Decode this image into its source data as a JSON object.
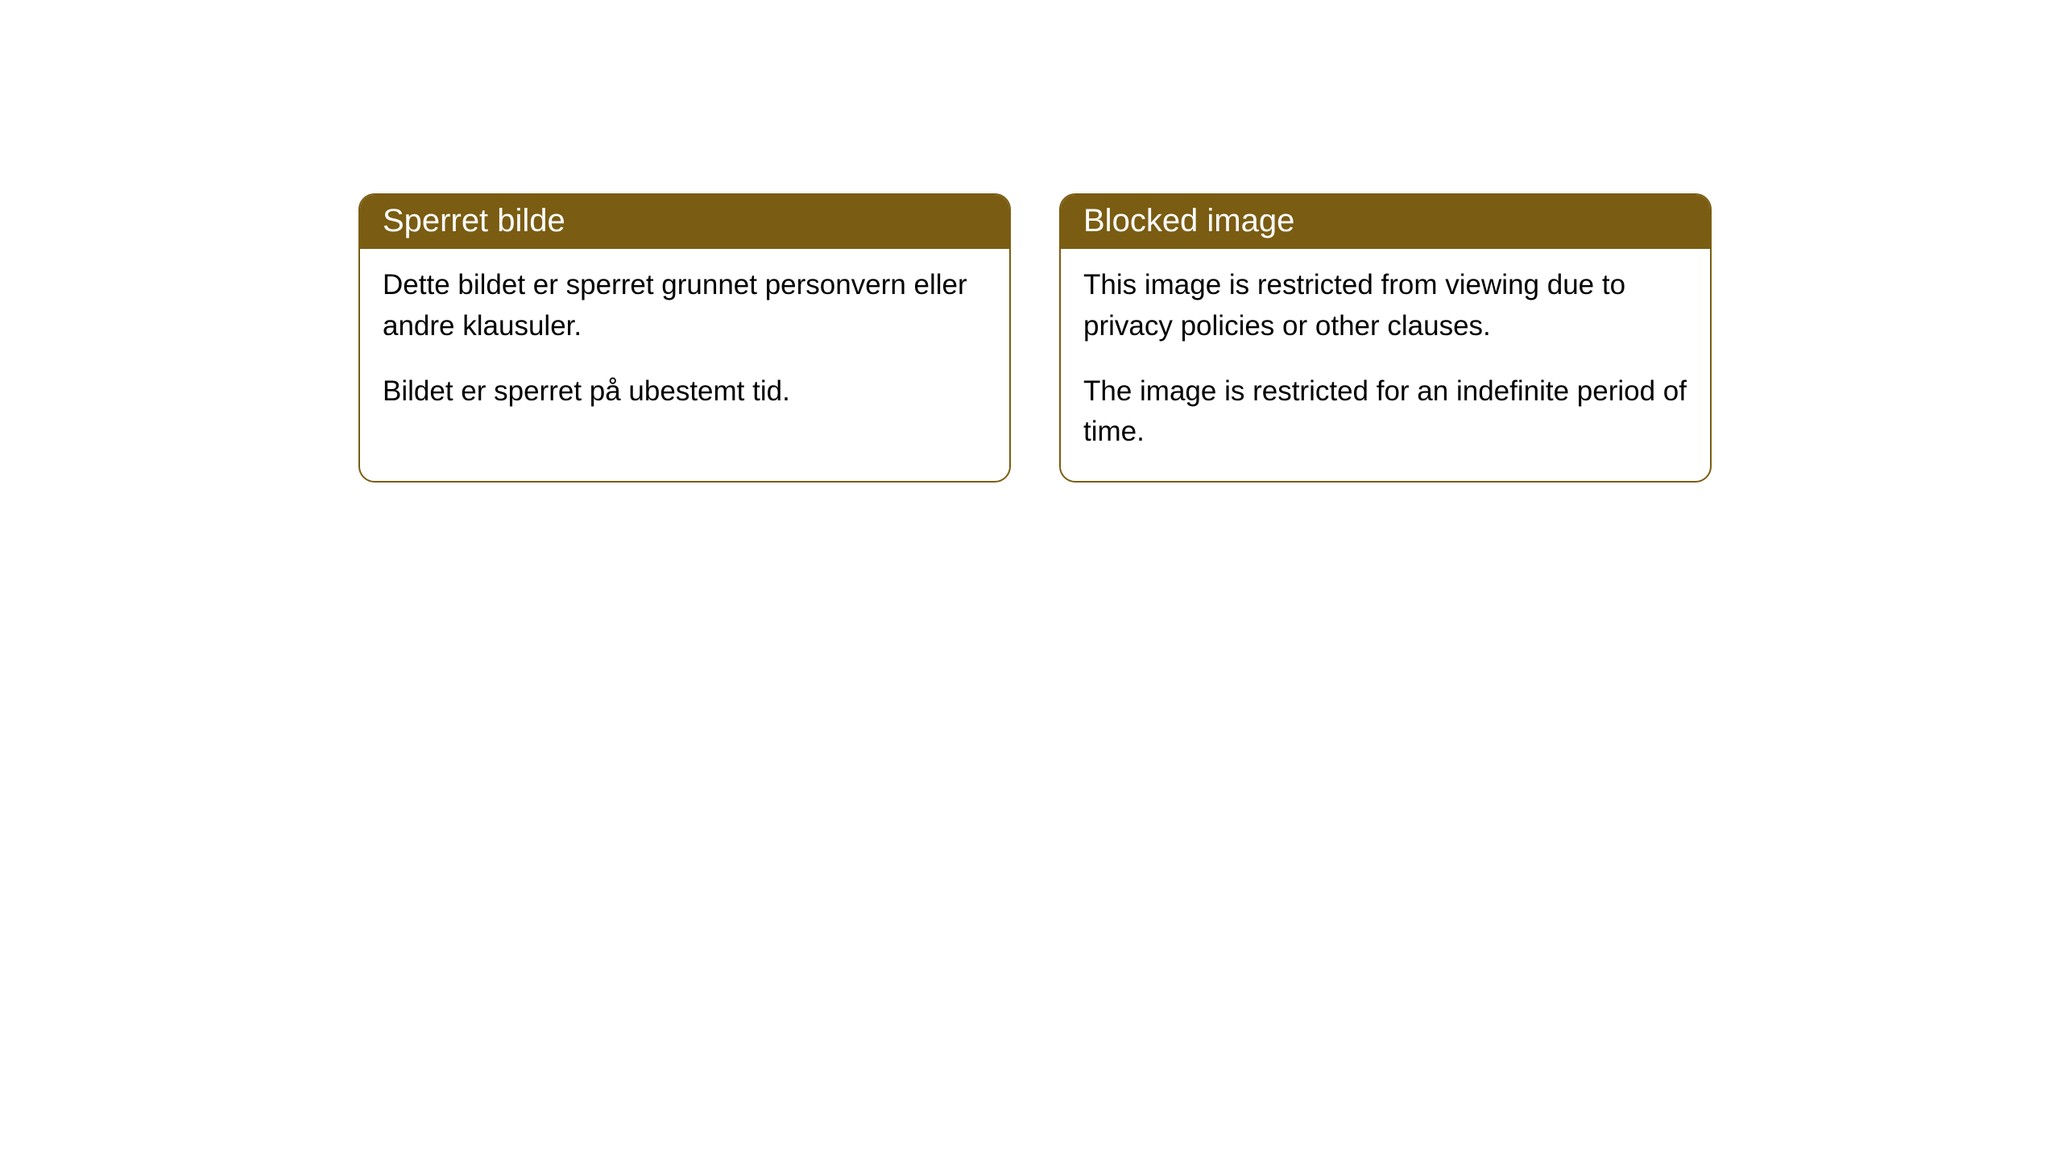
{
  "cards": [
    {
      "header_title": "Sperret bilde",
      "body_p1": "Dette bildet er sperret grunnet personvern eller andre klausuler.",
      "body_p2": "Bildet er sperret på ubestemt tid."
    },
    {
      "header_title": "Blocked image",
      "body_p1": "This image is restricted from viewing due to privacy policies or other clauses.",
      "body_p2": "The image is restricted for an indefinite period of time."
    }
  ],
  "styling": {
    "header_bg_color": "#7a5c13",
    "header_text_color": "#ffffff",
    "border_color": "#7a5c13",
    "body_bg_color": "#ffffff",
    "body_text_color": "#000000",
    "border_radius": 20,
    "header_fontsize": 40,
    "body_fontsize": 35
  }
}
